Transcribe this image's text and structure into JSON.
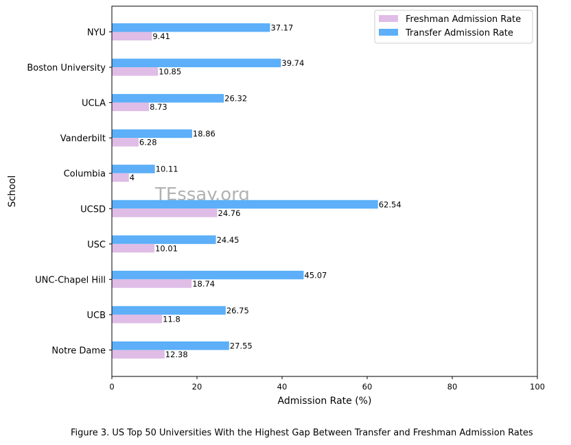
{
  "chart_data": {
    "type": "bar",
    "orientation": "horizontal",
    "categories": [
      "NYU",
      "Boston University",
      "UCLA",
      "Vanderbilt",
      "Columbia",
      "UCSD",
      "USC",
      "UNC-Chapel Hill",
      "UCB",
      "Notre Dame"
    ],
    "series": [
      {
        "name": "Freshman Admission Rate",
        "color": "#dfbde6",
        "values": [
          9.41,
          10.85,
          8.73,
          6.28,
          4,
          24.76,
          10.01,
          18.74,
          11.8,
          12.38
        ],
        "labels": [
          "9.41",
          "10.85",
          "8.73",
          "6.28",
          "4",
          "24.76",
          "10.01",
          "18.74",
          "11.8",
          "12.38"
        ]
      },
      {
        "name": "Transfer Admission Rate",
        "color": "#5caff8",
        "values": [
          37.17,
          39.74,
          26.32,
          18.86,
          10.11,
          62.54,
          24.45,
          45.07,
          26.75,
          27.55
        ],
        "labels": [
          "37.17",
          "39.74",
          "26.32",
          "18.86",
          "10.11",
          "62.54",
          "24.45",
          "45.07",
          "26.75",
          "27.55"
        ]
      }
    ],
    "xlabel": "Admission Rate (%)",
    "ylabel": "School",
    "xlim": [
      0,
      100
    ],
    "xticks": [
      "0",
      "20",
      "40",
      "60",
      "80",
      "100"
    ],
    "grid": false,
    "legend_position": "top-right",
    "watermark": "TEssay.org"
  },
  "caption": "Figure 3. US Top 50 Universities With the Highest Gap Between Transfer and Freshman Admission Rates"
}
